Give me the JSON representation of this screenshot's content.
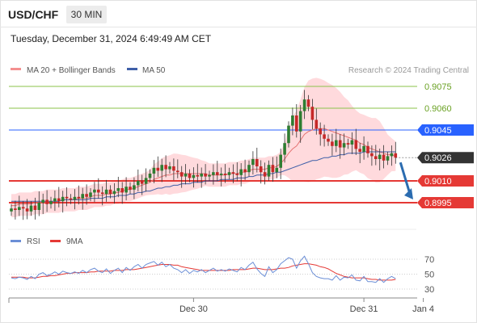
{
  "header": {
    "symbol": "USD/CHF",
    "timeframe": "30 MIN",
    "timestamp": "Tuesday, December 31, 2024 6:49:49 AM CET"
  },
  "legend": {
    "ma20": "MA 20 + Bollinger Bands",
    "ma50": "MA 50",
    "copyright": "Research © 2024 Trading Central",
    "rsi": "RSI",
    "rsi_ma": "9MA"
  },
  "colors": {
    "bullish": "#2e7d32",
    "bearish": "#c62828",
    "bollinger_fill": "#ffcdd2",
    "ma20": "#e57373",
    "ma50": "#3f5fa8",
    "resistance": "#8bc34a",
    "current": "#2962ff",
    "support": "#e53935",
    "last_price_bg": "#333333",
    "arrow": "#2b6cb0",
    "rsi_line": "#6b8ed6",
    "rsi_ma_line": "#e53935"
  },
  "levels": [
    {
      "value": 0.9075,
      "label": "0.9075",
      "kind": "resistance"
    },
    {
      "value": 0.906,
      "label": "0.9060",
      "kind": "resistance"
    },
    {
      "value": 0.9045,
      "label": "0.9045",
      "kind": "current"
    },
    {
      "value": 0.9026,
      "label": "0.9026",
      "kind": "last"
    },
    {
      "value": 0.901,
      "label": "0.9010",
      "kind": "support"
    },
    {
      "value": 0.8995,
      "label": "0.8995",
      "kind": "support"
    }
  ],
  "chart_data": [
    {
      "type": "candlestick",
      "title": "USD/CHF 30 MIN",
      "ylim": [
        0.8985,
        0.9095
      ],
      "x_ticks": [
        {
          "index": 46,
          "label": "Dec 30"
        },
        {
          "index": 89,
          "label": "Dec 31"
        },
        {
          "index": 104,
          "label": "Jan 4"
        }
      ],
      "close": [
        0.8991,
        0.899,
        0.8992,
        0.8991,
        0.8989,
        0.8993,
        0.899,
        0.8995,
        0.8997,
        0.8994,
        0.8996,
        0.8998,
        0.8996,
        0.8999,
        0.8998,
        0.8997,
        0.8999,
        0.8998,
        0.9001,
        0.8999,
        0.9002,
        0.9004,
        0.9002,
        0.9001,
        0.9004,
        0.9001,
        0.9003,
        0.9005,
        0.9002,
        0.9006,
        0.9004,
        0.9007,
        0.901,
        0.9008,
        0.9012,
        0.9015,
        0.9019,
        0.9017,
        0.9021,
        0.9018,
        0.902,
        0.9017,
        0.9016,
        0.9013,
        0.9015,
        0.9012,
        0.9014,
        0.9013,
        0.9015,
        0.9013,
        0.9014,
        0.9016,
        0.9014,
        0.9015,
        0.9014,
        0.9016,
        0.9015,
        0.9014,
        0.9018,
        0.9016,
        0.9021,
        0.9025,
        0.902,
        0.9016,
        0.9013,
        0.9021,
        0.9016,
        0.9019,
        0.9028,
        0.9036,
        0.9048,
        0.9055,
        0.9044,
        0.9058,
        0.9066,
        0.9061,
        0.9052,
        0.9046,
        0.9042,
        0.9039,
        0.9037,
        0.9034,
        0.9038,
        0.9033,
        0.9036,
        0.9035,
        0.9038,
        0.9032,
        0.903,
        0.9034,
        0.9029,
        0.9027,
        0.9025,
        0.9028,
        0.9024,
        0.9027,
        0.9029,
        0.9026
      ],
      "ma20": [
        0.8993,
        0.8993,
        0.8994,
        0.8994,
        0.8994,
        0.8994,
        0.8995,
        0.8995,
        0.8995,
        0.8996,
        0.8996,
        0.8996,
        0.8996,
        0.8997,
        0.8997,
        0.8997,
        0.8997,
        0.8998,
        0.8998,
        0.8998,
        0.8999,
        0.9,
        0.9,
        0.9,
        0.9001,
        0.9001,
        0.9002,
        0.9002,
        0.9003,
        0.9004,
        0.9004,
        0.9005,
        0.9006,
        0.9007,
        0.9008,
        0.9009,
        0.9011,
        0.9012,
        0.9013,
        0.9014,
        0.9014,
        0.9015,
        0.9015,
        0.9015,
        0.9015,
        0.9015,
        0.9015,
        0.9015,
        0.9015,
        0.9015,
        0.9014,
        0.9014,
        0.9014,
        0.9014,
        0.9014,
        0.9015,
        0.9015,
        0.9015,
        0.9016,
        0.9016,
        0.9017,
        0.9018,
        0.9018,
        0.9018,
        0.9018,
        0.9019,
        0.9019,
        0.902,
        0.9022,
        0.9025,
        0.9029,
        0.9032,
        0.9034,
        0.9038,
        0.9042,
        0.9044,
        0.9045,
        0.9046,
        0.9046,
        0.9046,
        0.9045,
        0.9044,
        0.9043,
        0.9042,
        0.9041,
        0.904,
        0.9039,
        0.9038,
        0.9036,
        0.9035,
        0.9033,
        0.9032,
        0.9031,
        0.903,
        0.9029,
        0.9028,
        0.9028,
        0.9027
      ],
      "ma50": [
        0.8996,
        0.8996,
        0.8996,
        0.8996,
        0.8996,
        0.8996,
        0.8996,
        0.8996,
        0.8996,
        0.8996,
        0.8996,
        0.8996,
        0.8996,
        0.8997,
        0.8997,
        0.8997,
        0.8997,
        0.8997,
        0.8997,
        0.8997,
        0.8998,
        0.8998,
        0.8998,
        0.8998,
        0.8999,
        0.8999,
        0.8999,
        0.9,
        0.9,
        0.9,
        0.9001,
        0.9001,
        0.9002,
        0.9002,
        0.9003,
        0.9003,
        0.9004,
        0.9005,
        0.9005,
        0.9006,
        0.9006,
        0.9007,
        0.9007,
        0.9008,
        0.9008,
        0.9008,
        0.9009,
        0.9009,
        0.9009,
        0.901,
        0.901,
        0.901,
        0.901,
        0.9011,
        0.9011,
        0.9011,
        0.9011,
        0.9012,
        0.9012,
        0.9012,
        0.9013,
        0.9013,
        0.9014,
        0.9014,
        0.9014,
        0.9015,
        0.9015,
        0.9016,
        0.9016,
        0.9017,
        0.9018,
        0.9019,
        0.902,
        0.9021,
        0.9022,
        0.9023,
        0.9024,
        0.9024,
        0.9025,
        0.9026,
        0.9026,
        0.9027,
        0.9027,
        0.9028,
        0.9028,
        0.9029,
        0.9029,
        0.9029,
        0.9029,
        0.903,
        0.903,
        0.903,
        0.903,
        0.903,
        0.903,
        0.903,
        0.903,
        0.903
      ]
    },
    {
      "type": "line",
      "title": "RSI",
      "ylim": [
        25,
        75
      ],
      "y_ticks": [
        30,
        50,
        70
      ],
      "series": [
        {
          "name": "RSI",
          "values": [
            45,
            44,
            46,
            45,
            43,
            47,
            44,
            50,
            52,
            48,
            50,
            53,
            50,
            54,
            52,
            51,
            53,
            51,
            55,
            52,
            56,
            58,
            54,
            52,
            57,
            51,
            55,
            58,
            52,
            59,
            55,
            60,
            63,
            58,
            63,
            65,
            67,
            62,
            66,
            60,
            63,
            58,
            56,
            52,
            56,
            51,
            55,
            53,
            56,
            52,
            55,
            58,
            54,
            56,
            54,
            57,
            55,
            53,
            59,
            56,
            62,
            66,
            57,
            51,
            47,
            60,
            52,
            56,
            64,
            68,
            72,
            70,
            58,
            68,
            74,
            64,
            52,
            47,
            45,
            44,
            44,
            42,
            48,
            42,
            46,
            45,
            49,
            42,
            41,
            47,
            40,
            40,
            39,
            44,
            39,
            44,
            47,
            44
          ]
        },
        {
          "name": "9MA",
          "values": [
            46,
            46,
            46,
            46,
            45,
            45,
            45,
            46,
            47,
            47,
            48,
            48,
            49,
            50,
            51,
            51,
            52,
            52,
            52,
            52,
            53,
            53,
            54,
            54,
            54,
            54,
            55,
            55,
            55,
            56,
            56,
            56,
            57,
            58,
            59,
            60,
            61,
            62,
            63,
            63,
            63,
            62,
            62,
            60,
            59,
            58,
            57,
            56,
            55,
            55,
            55,
            55,
            55,
            55,
            55,
            55,
            56,
            56,
            56,
            56,
            57,
            58,
            58,
            57,
            56,
            56,
            56,
            57,
            58,
            58,
            59,
            61,
            62,
            63,
            64,
            64,
            63,
            62,
            60,
            59,
            57,
            54,
            51,
            49,
            47,
            46,
            45,
            45,
            45,
            45,
            44,
            43,
            43,
            42,
            42,
            42,
            42,
            43
          ]
        }
      ]
    }
  ]
}
